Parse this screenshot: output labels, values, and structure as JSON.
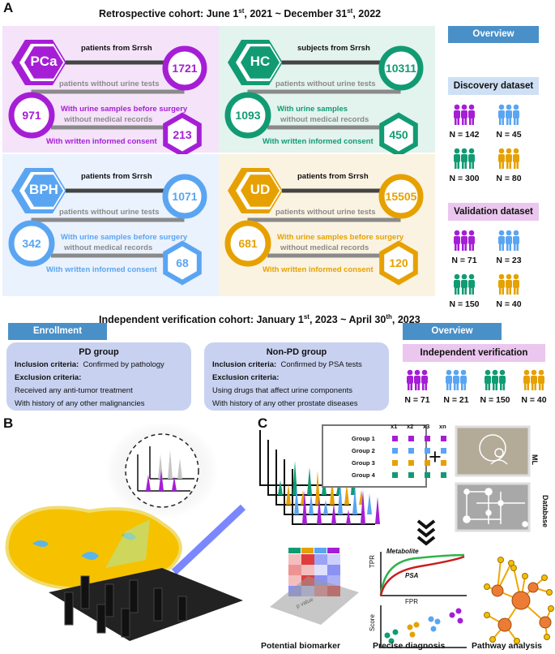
{
  "panels": {
    "a": "A",
    "b": "B",
    "c": "C"
  },
  "colors": {
    "pca": "#a51ed6",
    "hc": "#119b73",
    "bph": "#5aa5f2",
    "ud": "#e6a100",
    "overview_blue": "#4a90c8",
    "discovery_bg": "#cfe0f5",
    "validation_bg": "#ebc6ee"
  },
  "retro": {
    "title_pre": "Retrospective cohort: June 1",
    "sup1": "st",
    "title_mid": ", 2021 ~ December 31",
    "sup2": "st",
    "title_end": ", 2022"
  },
  "quadrants": [
    {
      "key": "pca",
      "label": "PCa",
      "source": "patients from Srrsh",
      "n1": "1721",
      "excl1": "patients without urine tests",
      "n2": "971",
      "step2": "With urine samples before surgery",
      "excl2": "without medical records",
      "n3": "213",
      "step3": "With written informed consent",
      "color": "#a51ed6",
      "bg": "#f5e3fa"
    },
    {
      "key": "hc",
      "label": "HC",
      "source": "subjects from Srrsh",
      "n1": "10311",
      "excl1": "patients without urine tests",
      "n2": "1093",
      "step2": "With urine samples",
      "excl2": "without medical records",
      "n3": "450",
      "step3": "With written informed consent",
      "color": "#119b73",
      "bg": "#e3f3ee"
    },
    {
      "key": "bph",
      "label": "BPH",
      "source": "patients from Srrsh",
      "n1": "1071",
      "excl1": "patients without urine tests",
      "n2": "342",
      "step2": "With urine samples before surgery",
      "excl2": "without medical records",
      "n3": "68",
      "step3": "With written informed consent",
      "color": "#5aa5f2",
      "bg": "#eaf2fd"
    },
    {
      "key": "ud",
      "label": "UD",
      "source": "patients from Srrsh",
      "n1": "15505",
      "excl1": "patients without urine tests",
      "n2": "681",
      "step2": "With urine samples before surgery",
      "excl2": "without medical records",
      "n3": "120",
      "step3": "With written informed consent",
      "color": "#e6a100",
      "bg": "#fbf3e2"
    }
  ],
  "overview": {
    "label": "Overview",
    "discovery": {
      "label": "Discovery dataset",
      "groups": [
        {
          "n": "N = 142",
          "color": "#a51ed6"
        },
        {
          "n": "N = 45",
          "color": "#5aa5f2"
        },
        {
          "n": "N = 300",
          "color": "#119b73"
        },
        {
          "n": "N = 80",
          "color": "#e6a100"
        }
      ]
    },
    "validation": {
      "label": "Validation dataset",
      "groups": [
        {
          "n": "N = 71",
          "color": "#a51ed6"
        },
        {
          "n": "N = 23",
          "color": "#5aa5f2"
        },
        {
          "n": "N = 150",
          "color": "#119b73"
        },
        {
          "n": "N = 40",
          "color": "#e6a100"
        }
      ]
    }
  },
  "indep": {
    "title_pre": "Independent verification cohort: January 1",
    "sup1": "st",
    "title_mid": ", 2023 ~ April 30",
    "sup2": "th",
    "title_end": ", 2023",
    "enrollment": "Enrollment",
    "pd": {
      "title": "PD group",
      "inclusion_label": "Inclusion criteria:",
      "inclusion": "Confirmed by pathology",
      "exclusion_label": "Exclusion criteria:",
      "exclusions": [
        "Received any anti-tumor treatment",
        "With history of any other malignancies"
      ]
    },
    "nonpd": {
      "title": "Non-PD group",
      "inclusion_label": "Inclusion criteria:",
      "inclusion": "Confirmed by PSA tests",
      "exclusion_label": "Exclusion criteria:",
      "exclusions": [
        "Using drugs that affect urine components",
        "With history of any other prostate diseases"
      ]
    },
    "overview": "Overview",
    "verification": {
      "label": "Independent verification",
      "groups": [
        {
          "n": "N = 71",
          "color": "#a51ed6"
        },
        {
          "n": "N = 21",
          "color": "#5aa5f2"
        },
        {
          "n": "N = 150",
          "color": "#119b73"
        },
        {
          "n": "N = 40",
          "color": "#e6a100"
        }
      ]
    }
  },
  "c": {
    "table": {
      "cols": [
        "x1",
        "x2",
        "x3",
        "xn"
      ],
      "rows": [
        {
          "label": "Group 1",
          "color": "#a51ed6"
        },
        {
          "label": "Group 2",
          "color": "#5aa5f2"
        },
        {
          "label": "Group 3",
          "color": "#e6a100"
        },
        {
          "label": "Group 4",
          "color": "#119b73"
        }
      ]
    },
    "plus": "+",
    "ml": "ML",
    "database": "Database",
    "p_value": "p value",
    "metabolite": "Metabolite",
    "psa": "PSA",
    "tpr": "TPR",
    "fpr": "FPR",
    "score": "Score",
    "captions": [
      "Potential biomarker",
      "Precise diagnosis",
      "Pathway analysis"
    ]
  }
}
